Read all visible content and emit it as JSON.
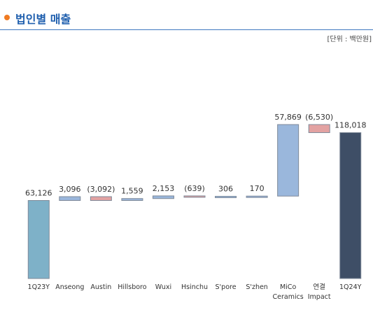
{
  "header": {
    "title": "법인별 매출",
    "unit": "[단위 : 백만원]"
  },
  "chart_data": {
    "type": "waterfall",
    "categories": [
      "1Q23Y",
      "Anseong",
      "Austin",
      "Hillsboro",
      "Wuxi",
      "Hsinchu",
      "S'pore",
      "S'zhen",
      "MiCo Ceramics",
      "연결 Impact",
      "1Q24Y"
    ],
    "values": [
      63126,
      3096,
      -3092,
      1559,
      2153,
      -639,
      306,
      170,
      57869,
      -6530,
      118018
    ],
    "value_labels": [
      "63,126",
      "3,096",
      "(3,092)",
      "1,559",
      "2,153",
      "(639)",
      "306",
      "170",
      "57,869",
      "(6,530)",
      "118,018"
    ],
    "measure": [
      "total",
      "relative",
      "relative",
      "relative",
      "relative",
      "relative",
      "relative",
      "relative",
      "relative",
      "relative",
      "total"
    ],
    "colors": [
      "#7eb1c8",
      "#9ab7dc",
      "#e3a2a2",
      "#9ab7dc",
      "#9ab7dc",
      "#e3a2a2",
      "#9ab7dc",
      "#9ab7dc",
      "#9ab7dc",
      "#e3a2a2",
      "#3e4e66"
    ],
    "negative_label_color": "#e03a3a"
  }
}
